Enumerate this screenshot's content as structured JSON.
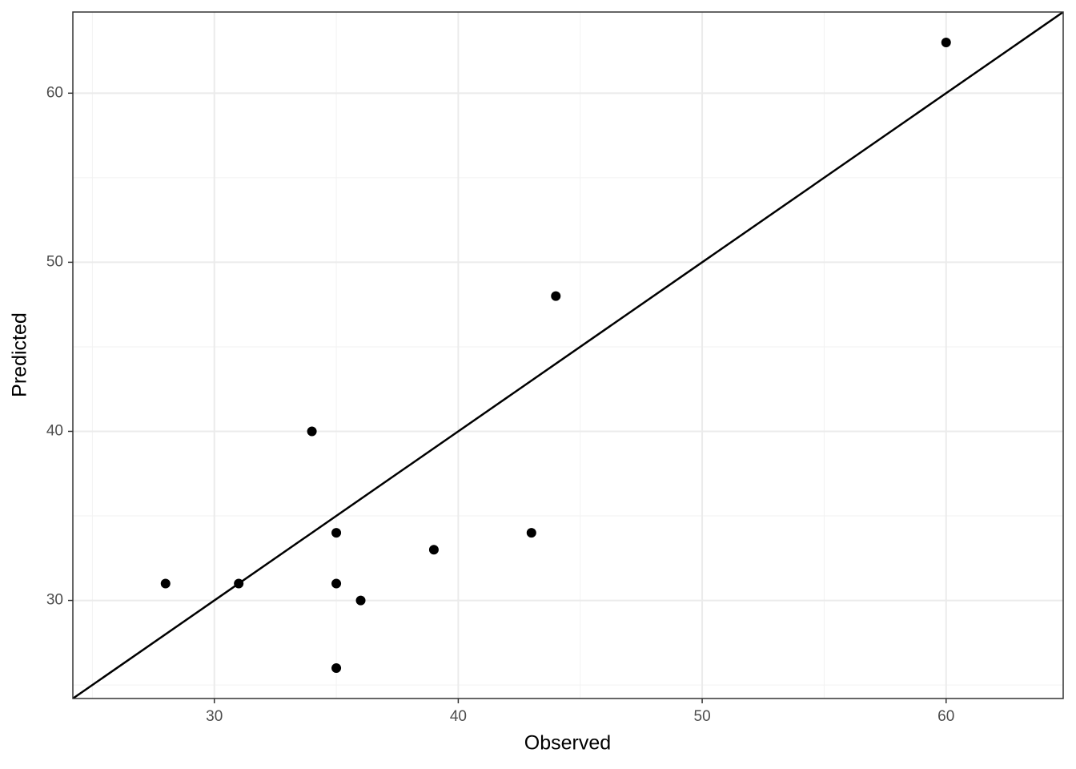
{
  "chart_data": {
    "type": "scatter",
    "x_label": "Observed",
    "y_label": "Predicted",
    "x": [
      28,
      31,
      34,
      35,
      35,
      35,
      36,
      39,
      43,
      44,
      60
    ],
    "series": [
      {
        "name": null,
        "color": "#000000",
        "values": [
          31,
          31,
          40,
          34,
          31,
          26,
          30,
          33,
          34,
          48,
          63
        ]
      }
    ],
    "xlim": [
      24.2,
      64.8
    ],
    "ylim": [
      24.2,
      64.8
    ],
    "xticks": [
      30,
      40,
      50,
      60
    ],
    "yticks": [
      30,
      40,
      50,
      60
    ],
    "x_minor_ticks": [
      25,
      35,
      45,
      55
    ],
    "y_minor_ticks": [
      25,
      35,
      45,
      55
    ],
    "grid": true,
    "reference_line": {
      "slope": 1,
      "intercept": 0,
      "color": "#000000"
    }
  }
}
